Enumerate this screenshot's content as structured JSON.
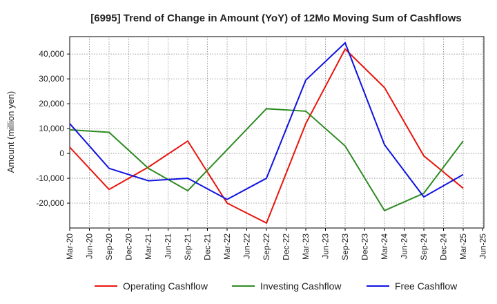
{
  "chart_data": {
    "type": "line",
    "title": "[6995]  Trend of Change in Amount (YoY) of 12Mo Moving Sum of Cashflows",
    "xlabel": "",
    "ylabel": "Amount (million yen)",
    "ylim": [
      -30000,
      47000
    ],
    "yticks": [
      -20000,
      -10000,
      0,
      10000,
      20000,
      30000,
      40000
    ],
    "ytick_labels": [
      "-20,000",
      "-10,000",
      "0",
      "10,000",
      "20,000",
      "30,000",
      "40,000"
    ],
    "grid": true,
    "legend_position": "bottom",
    "categories": [
      "Mar-20",
      "Jun-20",
      "Sep-20",
      "Dec-20",
      "Mar-21",
      "Jun-21",
      "Sep-21",
      "Dec-21",
      "Mar-22",
      "Jun-22",
      "Sep-22",
      "Dec-22",
      "Mar-23",
      "Jun-23",
      "Sep-23",
      "Dec-23",
      "Mar-24",
      "Jun-24",
      "Sep-24",
      "Dec-24",
      "Mar-25",
      "Jun-25"
    ],
    "series": [
      {
        "name": "Operating Cashflow",
        "color": "#e8150c",
        "values": [
          2500,
          null,
          -14500,
          null,
          -5500,
          null,
          5000,
          null,
          -20000,
          null,
          -28000,
          null,
          12000,
          null,
          42000,
          null,
          26500,
          null,
          -1000,
          null,
          -14000,
          null
        ]
      },
      {
        "name": "Investing Cashflow",
        "color": "#2e8b22",
        "values": [
          9500,
          null,
          8500,
          null,
          -6000,
          null,
          -15000,
          null,
          1500,
          null,
          18000,
          null,
          17000,
          null,
          3000,
          null,
          -23000,
          null,
          -16000,
          null,
          5000,
          null
        ]
      },
      {
        "name": "Free Cashflow",
        "color": "#0f12e0",
        "values": [
          12000,
          null,
          -6000,
          null,
          -11000,
          null,
          -10000,
          null,
          -18500,
          null,
          -10000,
          null,
          29500,
          null,
          44500,
          null,
          3500,
          null,
          -17500,
          null,
          -8500,
          null
        ]
      }
    ]
  }
}
